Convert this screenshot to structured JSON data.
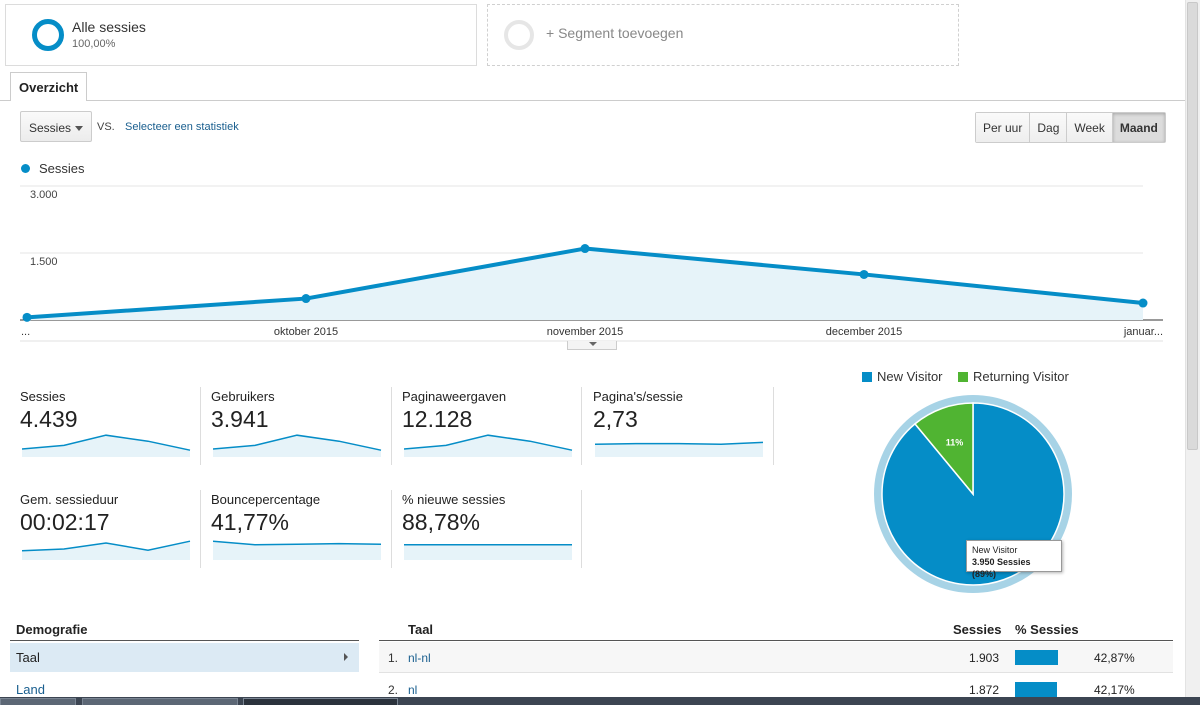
{
  "segments": {
    "all": {
      "name": "Alle sessies",
      "percent": "100,00%"
    },
    "add_label": "+ Segment toevoegen"
  },
  "tabs": {
    "overview": "Overzicht"
  },
  "controls": {
    "metric": "Sessies",
    "vs": "VS.",
    "select_stat": "Selecteer een statistiek",
    "periods": [
      "Per uur",
      "Dag",
      "Week",
      "Maand"
    ],
    "active_period": "Maand"
  },
  "chart_data": {
    "type": "area",
    "series": [
      {
        "name": "Sessies",
        "values": [
          60,
          480,
          1600,
          1020,
          380
        ]
      }
    ],
    "categories": [
      "...",
      "oktober 2015",
      "november 2015",
      "december 2015",
      "januar..."
    ],
    "y_ticks": [
      "3.000",
      "1.500"
    ],
    "ylim": [
      0,
      3000
    ],
    "grid": true,
    "color": "#058dc7"
  },
  "scorecards": [
    {
      "label": "Sessies",
      "value": "4.439",
      "spark": [
        10,
        16,
        33,
        23,
        8
      ]
    },
    {
      "label": "Gebruikers",
      "value": "3.941",
      "spark": [
        10,
        16,
        33,
        23,
        8
      ]
    },
    {
      "label": "Paginaweergaven",
      "value": "12.128",
      "spark": [
        10,
        16,
        33,
        23,
        8
      ]
    },
    {
      "label": "Pagina's/sessie",
      "value": "2,73",
      "spark": [
        18,
        19,
        19,
        18,
        21
      ]
    },
    {
      "label": "Gem. sessieduur",
      "value": "00:02:17",
      "spark": [
        12,
        15,
        25,
        13,
        28
      ]
    },
    {
      "label": "Bouncepercentage",
      "value": "41,77%",
      "spark": [
        28,
        22,
        23,
        24,
        23
      ]
    },
    {
      "label": "% nieuwe sessies",
      "value": "88,78%",
      "spark": [
        22,
        22,
        22,
        22,
        22
      ]
    }
  ],
  "pie": {
    "legend": [
      {
        "label": "New Visitor",
        "color": "#058dc7"
      },
      {
        "label": "Returning Visitor",
        "color": "#50b432"
      }
    ],
    "values": [
      89,
      11
    ],
    "slice_label": "11%",
    "tooltip": {
      "title": "New Visitor",
      "value": "3.950 Sessies (89%)"
    }
  },
  "demographics": {
    "heading": "Demografie",
    "active": "Taal",
    "items": [
      "Land"
    ]
  },
  "table": {
    "headers": {
      "dimension": "Taal",
      "sessions": "Sessies",
      "pct": "% Sessies"
    },
    "rows": [
      {
        "index": "1.",
        "name": "nl-nl",
        "sessions": "1.903",
        "pct": "42,87%",
        "share": 42.87
      },
      {
        "index": "2.",
        "name": "nl",
        "sessions": "1.872",
        "pct": "42,17%",
        "share": 42.17
      }
    ]
  }
}
